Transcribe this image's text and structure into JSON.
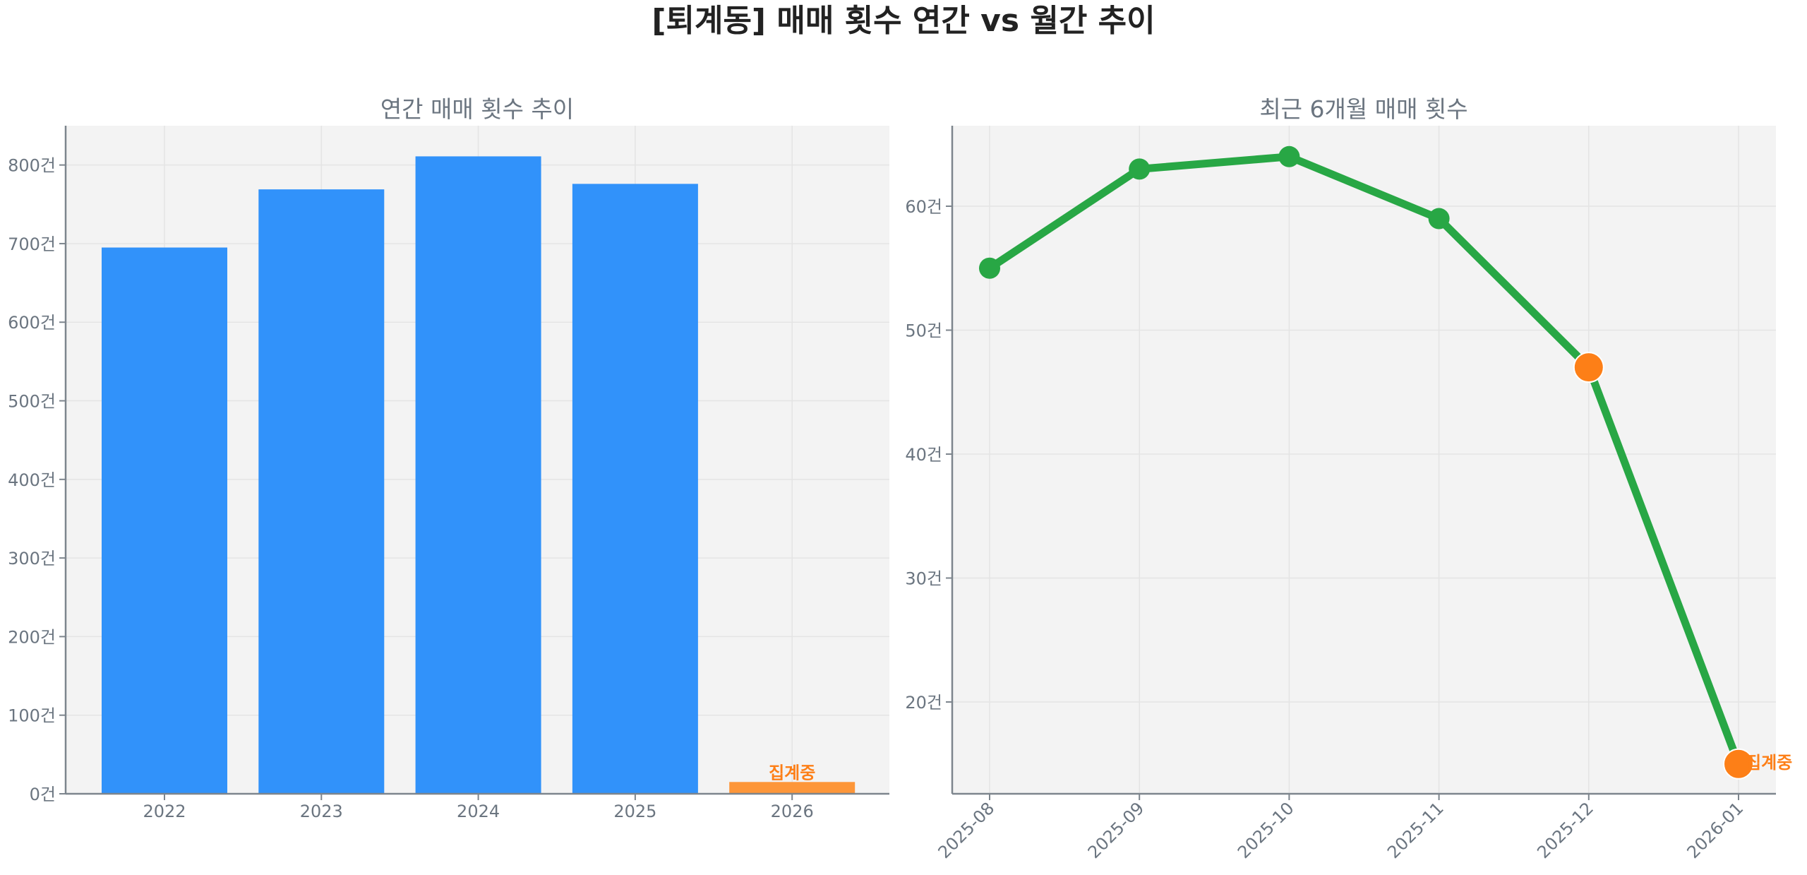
{
  "figure": {
    "title": "[퇴계동] 매매 횟수 연간 vs 월간 추이",
    "background": "#ffffff",
    "plot_background": "#f3f3f3"
  },
  "chart_data": [
    {
      "type": "bar",
      "title": "연간 매매 횟수 추이",
      "xlabel": "",
      "ylabel": "",
      "categories": [
        "2022",
        "2023",
        "2024",
        "2025",
        "2026"
      ],
      "values": [
        695,
        769,
        811,
        776,
        15
      ],
      "colors": [
        "#3192fa",
        "#3192fa",
        "#3192fa",
        "#3192fa",
        "#fd9639"
      ],
      "ylim": [
        0,
        850
      ],
      "yticks": [
        0,
        100,
        200,
        300,
        400,
        500,
        600,
        700,
        800
      ],
      "ytick_suffix": "건",
      "grid": true,
      "annotations": [
        {
          "category": "2026",
          "text": "집계중",
          "color": "#fd7f17"
        }
      ]
    },
    {
      "type": "line",
      "title": "최근 6개월 매매 횟수",
      "xlabel": "",
      "ylabel": "",
      "categories": [
        "2025-08",
        "2025-09",
        "2025-10",
        "2025-11",
        "2025-12",
        "2026-01"
      ],
      "values": [
        55,
        63,
        64,
        59,
        47,
        15
      ],
      "line_color": "#28a745",
      "highlight_color": "#fd7f17",
      "highlight_points": [
        "2025-12",
        "2026-01"
      ],
      "ylim": [
        12.3,
        66.5
      ],
      "yticks": [
        20,
        30,
        40,
        50,
        60
      ],
      "ytick_suffix": "건",
      "xtick_rotation": 45,
      "grid": true,
      "annotations": [
        {
          "category": "2026-01",
          "text": "집계중",
          "color": "#fd7f17"
        }
      ]
    }
  ]
}
